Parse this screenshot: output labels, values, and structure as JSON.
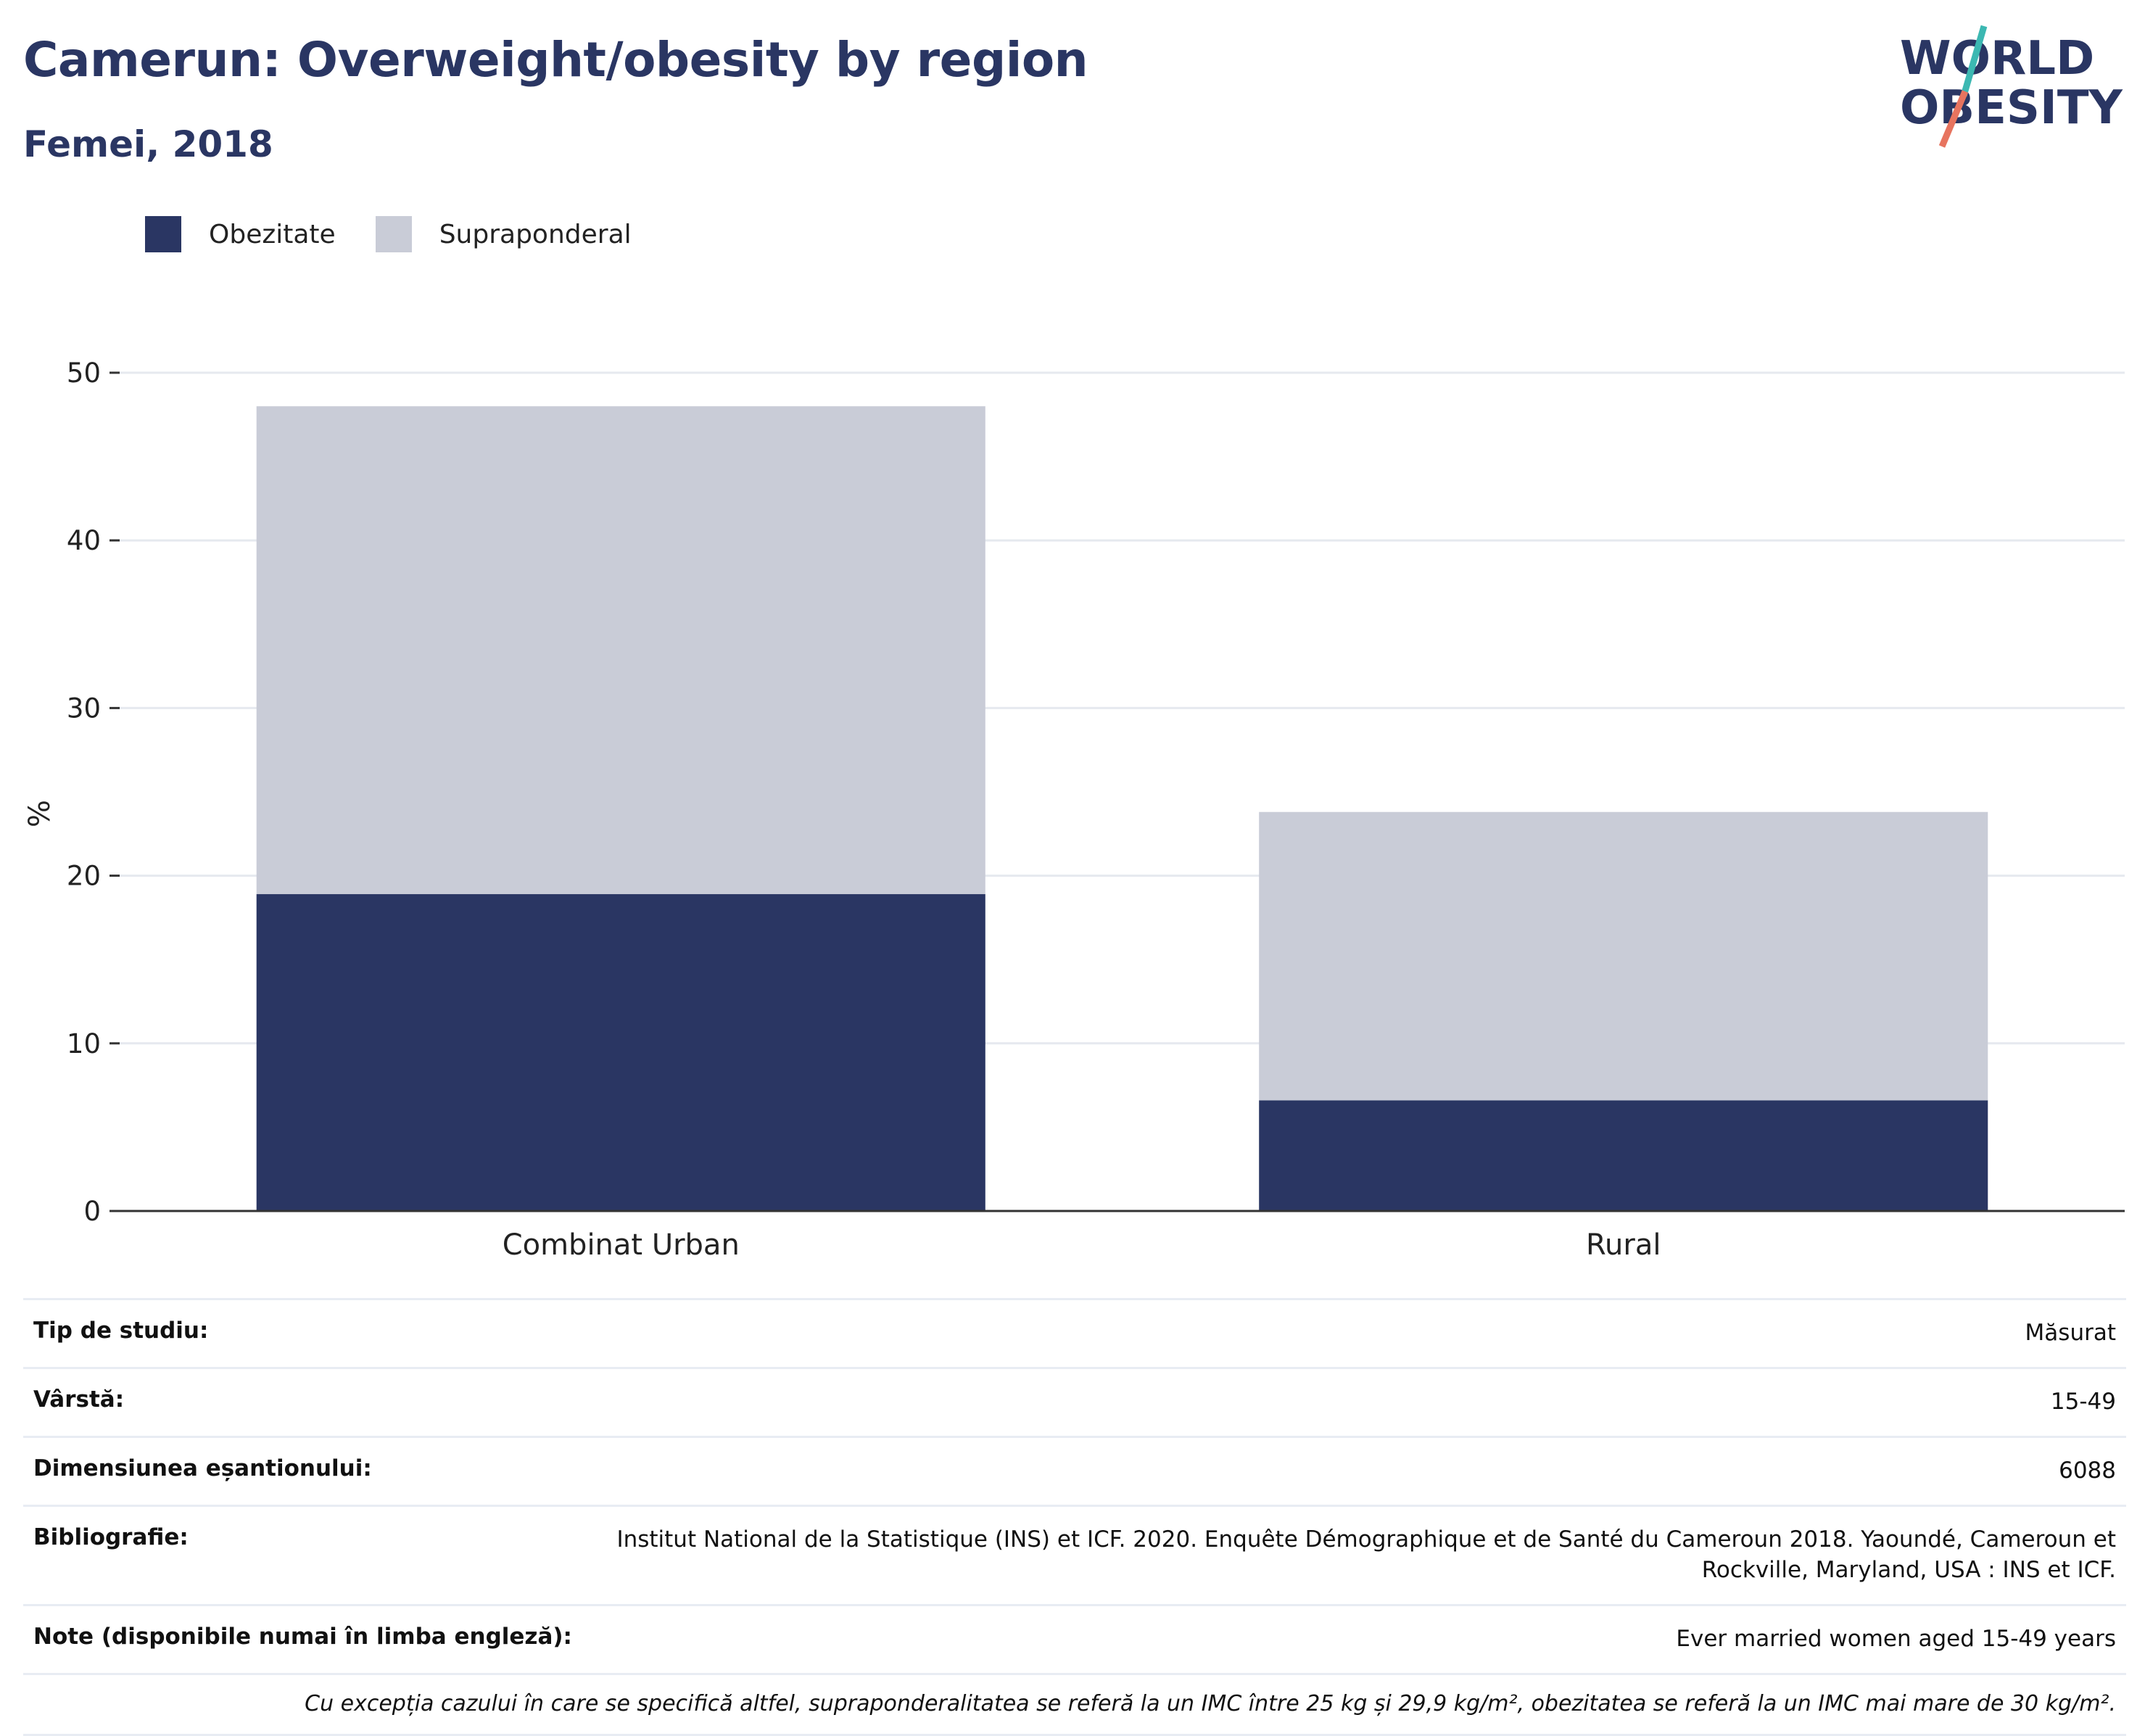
{
  "header": {
    "title": "Camerun: Overweight/obesity by region",
    "subtitle": "Femei, 2018"
  },
  "logo": {
    "line1": "WORLD",
    "line2": "OBESITY"
  },
  "colors": {
    "obesity": "#2a3663",
    "overweight": "#c9ccd7",
    "grid": "#e6e9ef",
    "axis": "#333333",
    "logo_teal": "#3cb8b2",
    "logo_coral": "#e7745f"
  },
  "legend": {
    "items": [
      {
        "label": "Obezitate",
        "color": "#2a3663"
      },
      {
        "label": "Supraponderal",
        "color": "#c9ccd7"
      }
    ]
  },
  "chart_data": {
    "type": "bar",
    "stacked": true,
    "categories": [
      "Combinat Urban",
      "Rural"
    ],
    "series": [
      {
        "name": "Obezitate",
        "values": [
          18.9,
          6.6
        ]
      },
      {
        "name": "Supraponderal",
        "values": [
          29.1,
          17.2
        ]
      }
    ],
    "ylabel": "%",
    "ylim": [
      0,
      50
    ],
    "yticks": [
      0,
      10,
      20,
      30,
      40,
      50
    ],
    "grid": true,
    "legend_position": "top-left"
  },
  "meta": {
    "rows": [
      {
        "key": "Tip de studiu:",
        "value": "Măsurat"
      },
      {
        "key": "Vârstă:",
        "value": "15-49"
      },
      {
        "key": "Dimensiunea eșantionului:",
        "value": "6088"
      },
      {
        "key": "Bibliografie:",
        "value": "Institut National de la Statistique (INS) et ICF. 2020. Enquête Démographique et de Santé du Cameroun 2018. Yaoundé, Cameroun et Rockville, Maryland, USA : INS et ICF."
      },
      {
        "key": "Note (disponibile numai în limba engleză):",
        "value": "Ever married women aged 15-49 years"
      }
    ],
    "footnote": "Cu excepția cazului în care se specifică altfel, supraponderalitatea se referă la un IMC între 25 kg și 29,9 kg/m², obezitatea se referă la un IMC mai mare de 30 kg/m²."
  }
}
